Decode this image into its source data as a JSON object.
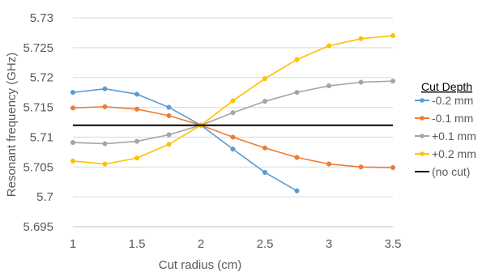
{
  "chart_data": {
    "type": "line",
    "title": "",
    "xlabel": "Cut radius (cm)",
    "ylabel": "Resonant frequency (GHz)",
    "xlim": [
      1,
      3.5
    ],
    "ylim": [
      5.695,
      5.73
    ],
    "x_ticks": [
      "1",
      "1.5",
      "2",
      "2.5",
      "3",
      "3.5"
    ],
    "y_ticks": [
      "5.695",
      "5.7",
      "5.705",
      "5.71",
      "5.715",
      "5.72",
      "5.725",
      "5.73"
    ],
    "grid": "horizontal",
    "legend_title": "Cut Depth",
    "legend_position": "right",
    "series": [
      {
        "name": "-0.2 mm",
        "color": "#5B9BD5",
        "marker": "circle",
        "x": [
          1,
          1.25,
          1.5,
          1.75,
          2,
          2.25,
          2.5,
          2.75
        ],
        "y": [
          5.7175,
          5.7181,
          5.7172,
          5.715,
          5.712,
          5.708,
          5.7041,
          5.701
        ]
      },
      {
        "name": "-0.1 mm",
        "color": "#ED7D31",
        "marker": "circle",
        "x": [
          1,
          1.25,
          1.5,
          1.75,
          2,
          2.25,
          2.5,
          2.75,
          3,
          3.25,
          3.5
        ],
        "y": [
          5.7149,
          5.7151,
          5.7147,
          5.7136,
          5.712,
          5.71,
          5.7082,
          5.7066,
          5.7055,
          5.705,
          5.7049
        ]
      },
      {
        "name": "+0.1 mm",
        "color": "#A5A5A5",
        "marker": "circle",
        "x": [
          1,
          1.25,
          1.5,
          1.75,
          2,
          2.25,
          2.5,
          2.75,
          3,
          3.25,
          3.5
        ],
        "y": [
          5.7091,
          5.7089,
          5.7093,
          5.7104,
          5.712,
          5.7141,
          5.716,
          5.7175,
          5.7186,
          5.7192,
          5.7194
        ]
      },
      {
        "name": "+0.2 mm",
        "color": "#FFC000",
        "marker": "circle",
        "x": [
          1,
          1.25,
          1.5,
          1.75,
          2,
          2.25,
          2.5,
          2.75,
          3,
          3.25,
          3.5
        ],
        "y": [
          5.706,
          5.7055,
          5.7065,
          5.7088,
          5.712,
          5.7161,
          5.7198,
          5.723,
          5.7253,
          5.7265,
          5.727
        ]
      },
      {
        "name": "(no cut)",
        "color": "#000000",
        "marker": "none",
        "x": [
          1,
          3.5
        ],
        "y": [
          5.712,
          5.712
        ]
      }
    ]
  }
}
